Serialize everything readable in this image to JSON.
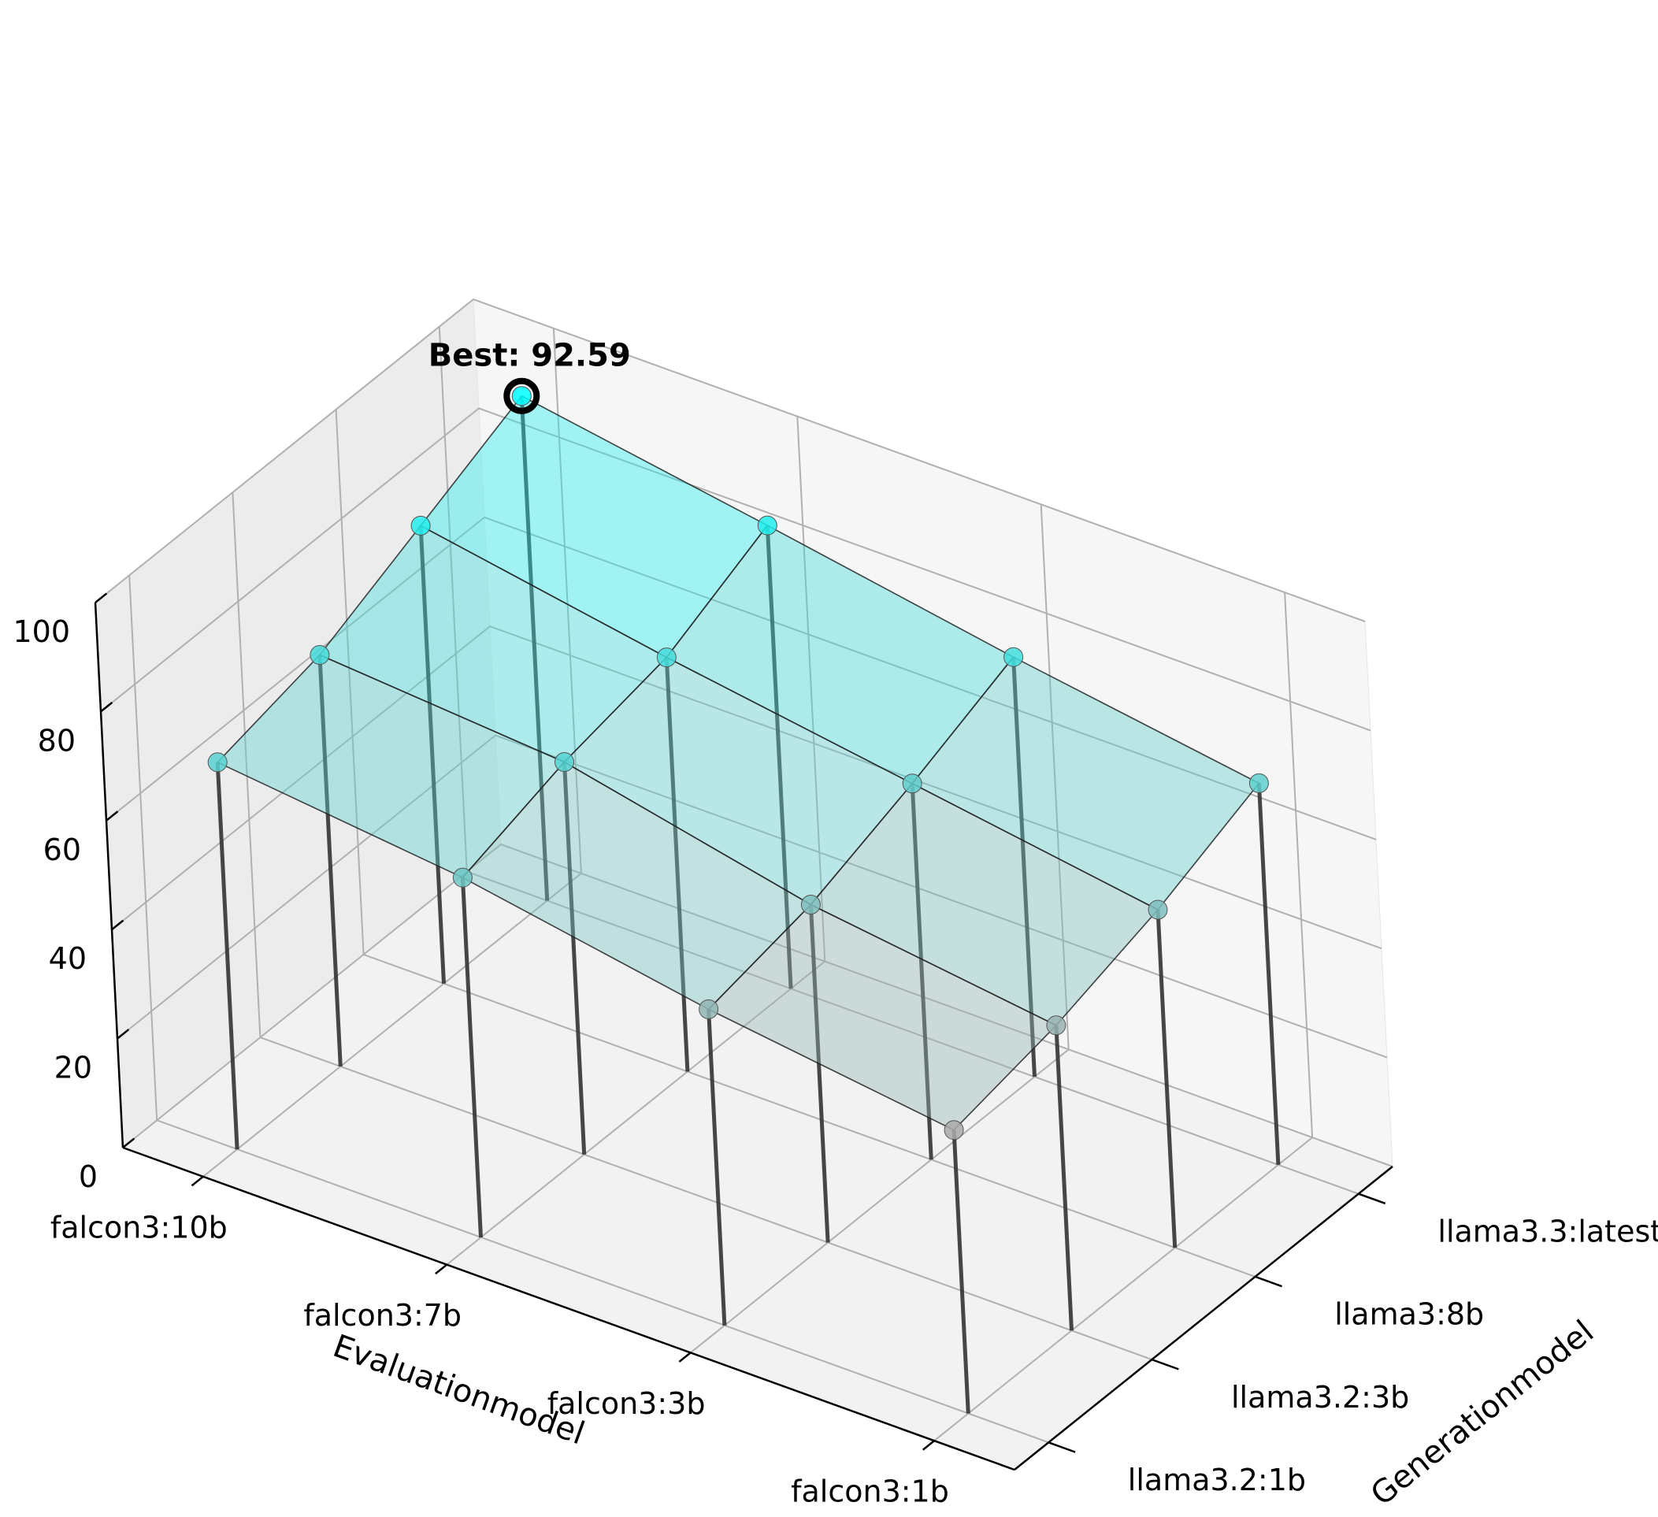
{
  "chart_data": {
    "type": "surface3d",
    "title": "",
    "xlabel": "Evaluationmodel",
    "ylabel": "Generationmodel",
    "zlabel": "",
    "x_categories": [
      "falcon3:10b",
      "falcon3:7b",
      "falcon3:3b",
      "falcon3:1b"
    ],
    "y_categories": [
      "llama3.2:1b",
      "llama3.2:3b",
      "llama3:8b",
      "llama3.3:latest"
    ],
    "z_ticks": [
      "0",
      "20",
      "40",
      "60",
      "80",
      "100"
    ],
    "zlim": [
      0,
      100
    ],
    "values": [
      [
        71.0,
        75.5,
        84.0,
        92.59
      ],
      [
        66.0,
        72.0,
        76.0,
        85.0
      ],
      [
        58.0,
        62.0,
        69.0,
        77.0
      ],
      [
        52.0,
        56.0,
        62.0,
        70.0
      ]
    ],
    "values_layout": "values[x_index][y_index]",
    "best": {
      "label": "Best: 92.59",
      "value": 92.59,
      "x": "falcon3:10b",
      "y": "llama3.3:latest"
    },
    "colormap": {
      "low": "#a9a9a9",
      "high": "#00ffff"
    },
    "grid": true
  }
}
